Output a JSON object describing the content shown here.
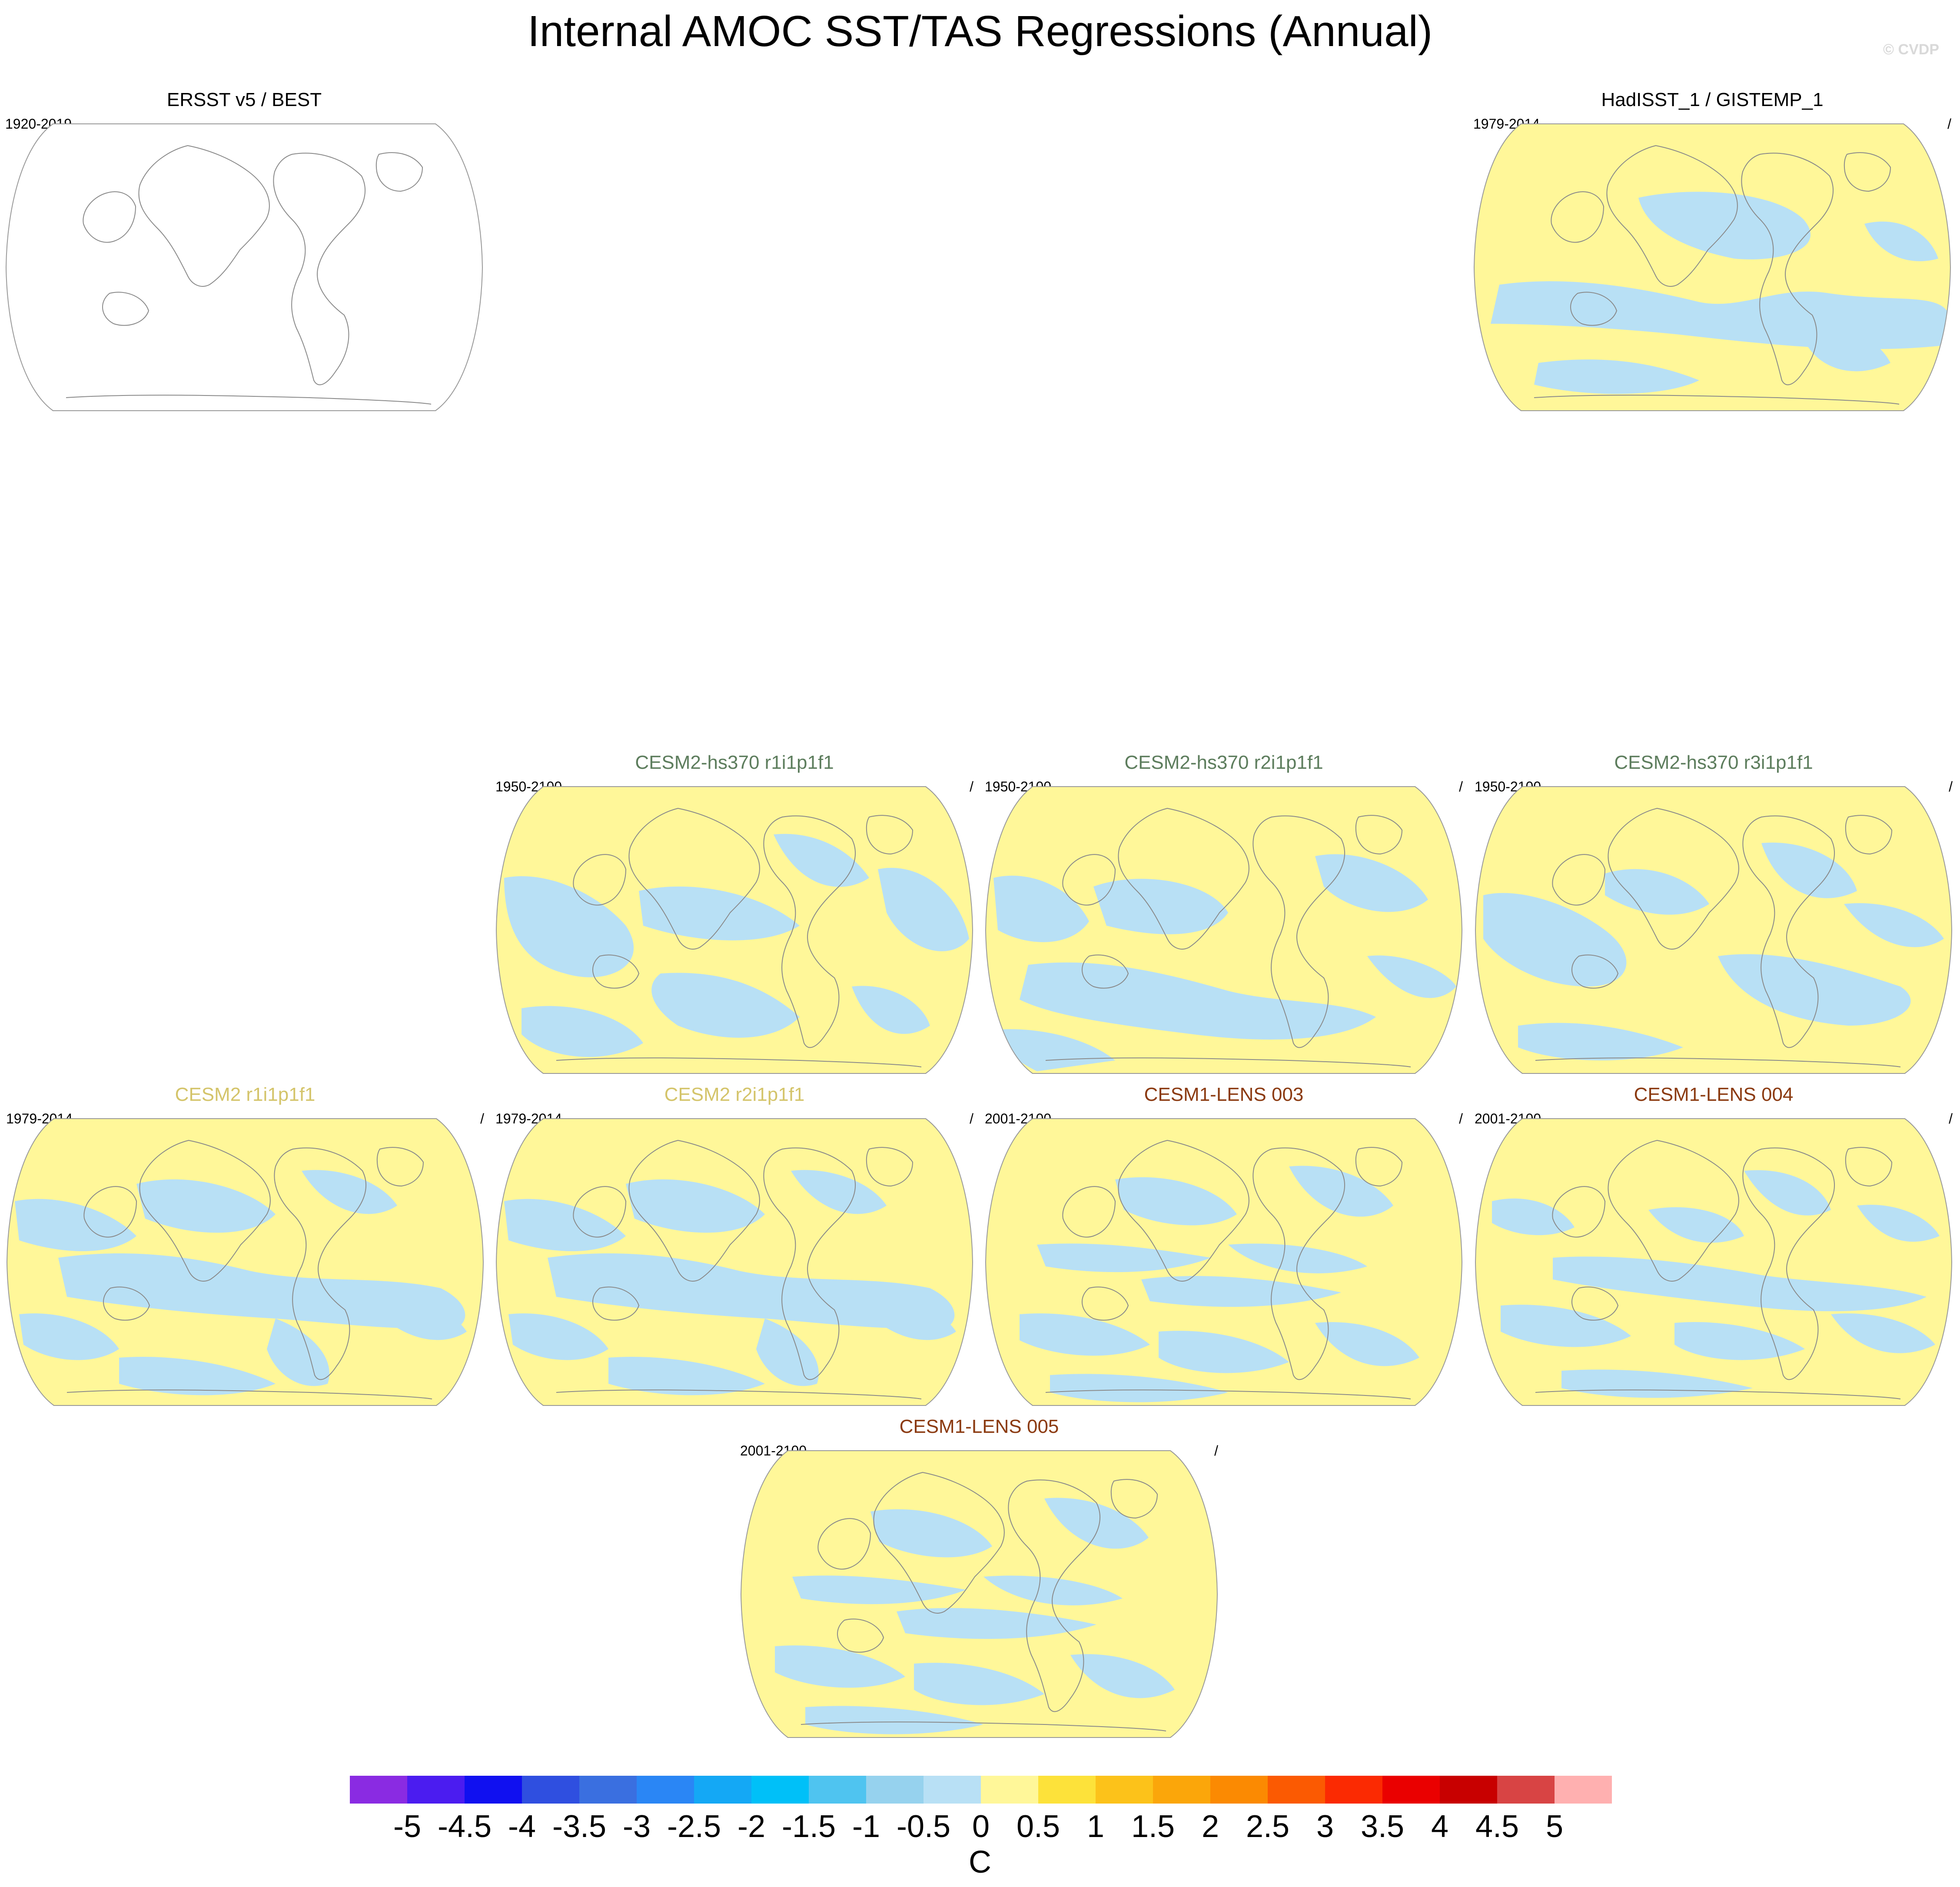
{
  "title": "Internal AMOC SST/TAS Regressions (Annual)",
  "copyright": "© CVDP",
  "colors": {
    "negative_small": "#b8e0f5",
    "positive_small": "#fff799",
    "outline": "#999999",
    "model_cesm2_hs370": "#5d7d5d",
    "model_cesm2": "#d4c46a",
    "model_cesm1_lens": "#8b3a10",
    "obs": "#000000"
  },
  "panels": [
    {
      "id": "p1",
      "title": "ERSST v5 / BEST",
      "years": "1920-2019",
      "slash": "",
      "fill": "blank"
    },
    {
      "id": "p2",
      "title": "HadISST_1 / GISTEMP_1",
      "years": "1979-2014",
      "slash": "/",
      "fill": "pattern-a"
    },
    {
      "id": "p3",
      "title": "CESM2-hs370 r1i1p1f1",
      "years": "1950-2100",
      "slash": "/",
      "fill": "pattern-b"
    },
    {
      "id": "p4",
      "title": "CESM2-hs370 r2i1p1f1",
      "years": "1950-2100",
      "slash": "/",
      "fill": "pattern-c"
    },
    {
      "id": "p5",
      "title": "CESM2-hs370 r3i1p1f1",
      "years": "1950-2100",
      "slash": "/",
      "fill": "pattern-d"
    },
    {
      "id": "p6",
      "title": "CESM2 r1i1p1f1",
      "years": "1979-2014",
      "slash": "/",
      "fill": "pattern-e"
    },
    {
      "id": "p7",
      "title": "CESM2 r2i1p1f1",
      "years": "1979-2014",
      "slash": "/",
      "fill": "pattern-e"
    },
    {
      "id": "p8",
      "title": "CESM1-LENS 003",
      "years": "2001-2100",
      "slash": "/",
      "fill": "pattern-f"
    },
    {
      "id": "p9",
      "title": "CESM1-LENS 004",
      "years": "2001-2100",
      "slash": "/",
      "fill": "pattern-g"
    },
    {
      "id": "p10",
      "title": "CESM1-LENS 005",
      "years": "2001-2100",
      "slash": "/",
      "fill": "pattern-f"
    }
  ],
  "colorbar": {
    "colors": [
      "#8a2be2",
      "#4b1cf0",
      "#1010f0",
      "#2f4fe0",
      "#3a6fe0",
      "#2a86f5",
      "#14a8f5",
      "#00c0f8",
      "#4fc4f0",
      "#96d2ee",
      "#b8e0f5",
      "#fff799",
      "#fde23a",
      "#fcc21a",
      "#fba60a",
      "#fb8a02",
      "#fb5a02",
      "#fb2a02",
      "#ea0000",
      "#c80000",
      "#d84444",
      "#ffb0b0"
    ],
    "labels": [
      "-5",
      "-4.5",
      "-4",
      "-3.5",
      "-3",
      "-2.5",
      "-2",
      "-1.5",
      "-1",
      "-0.5",
      "0",
      "0.5",
      "1",
      "1.5",
      "2",
      "2.5",
      "3",
      "3.5",
      "4",
      "4.5",
      "5"
    ],
    "units": "C"
  }
}
